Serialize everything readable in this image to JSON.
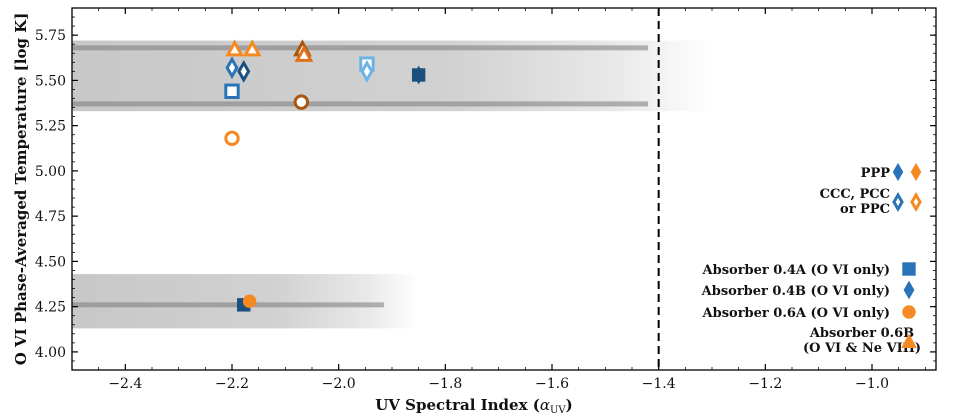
{
  "chart_data": {
    "type": "scatter",
    "xlabel": "UV Spectral Index (",
    "xlabel_symbol": "α",
    "xlabel_sub": "UV",
    "xlabel_close": ")",
    "ylabel": "O VI Phase-Averaged Temperature [log K]",
    "xlim": [
      -2.5,
      -0.88
    ],
    "ylim": [
      3.9,
      5.9
    ],
    "xticks": [
      -2.4,
      -2.2,
      -2.0,
      -1.8,
      -1.6,
      -1.4,
      -1.2,
      -1.0
    ],
    "yticks": [
      4.0,
      4.25,
      4.5,
      4.75,
      5.0,
      5.25,
      5.5,
      5.75
    ],
    "xtick_labels": [
      "−2.4",
      "−2.2",
      "−2.0",
      "−1.8",
      "−1.6",
      "−1.4",
      "−1.2",
      "−1.0"
    ],
    "ytick_labels": [
      "4.00",
      "4.25",
      "4.50",
      "4.75",
      "5.00",
      "5.25",
      "5.50",
      "5.75"
    ],
    "vline_x": -1.4,
    "colors": {
      "blue": "#2a73b6",
      "dark_blue": "#1a4f7f",
      "light_blue": "#6fb3e6",
      "orange": "#f58a23",
      "brown": "#a9560f",
      "dark_orange": "#e0701a"
    },
    "background_bands": [
      {
        "y_low": 5.33,
        "y_high": 5.72,
        "x_low": -2.5,
        "x_high": -1.3,
        "dense_lines": [
          5.37,
          5.68
        ]
      },
      {
        "y_low": 4.13,
        "y_high": 4.43,
        "x_low": -2.5,
        "x_high": -1.85,
        "dense_lines": [
          4.26
        ]
      }
    ],
    "series": [
      {
        "name": "Absorber 0.4A (O VI only)",
        "marker": "square",
        "points": [
          {
            "x": -2.2,
            "y": 5.44,
            "fill": "open",
            "color": "blue"
          },
          {
            "x": -1.947,
            "y": 5.59,
            "fill": "open",
            "color": "light_blue"
          },
          {
            "x": -1.85,
            "y": 5.53,
            "fill": "filled",
            "color": "dark_blue"
          },
          {
            "x": -2.178,
            "y": 4.26,
            "fill": "filled",
            "color": "dark_blue"
          }
        ]
      },
      {
        "name": "Absorber 0.4B (O VI only)",
        "marker": "diamond",
        "points": [
          {
            "x": -2.2,
            "y": 5.57,
            "fill": "open",
            "color": "blue"
          },
          {
            "x": -2.178,
            "y": 5.55,
            "fill": "open",
            "color": "dark_blue"
          },
          {
            "x": -1.947,
            "y": 5.55,
            "fill": "open",
            "color": "light_blue"
          },
          {
            "x": -1.85,
            "y": 5.53,
            "fill": "filled",
            "color": "dark_blue"
          }
        ]
      },
      {
        "name": "Absorber 0.6A (O VI only)",
        "marker": "circle",
        "points": [
          {
            "x": -2.2,
            "y": 5.18,
            "fill": "open",
            "color": "orange"
          },
          {
            "x": -2.07,
            "y": 5.38,
            "fill": "open",
            "color": "brown"
          },
          {
            "x": -2.167,
            "y": 4.28,
            "fill": "filled",
            "color": "orange"
          }
        ]
      },
      {
        "name": "Absorber 0.6B (O VI & Ne VIII)",
        "marker": "triangle",
        "points": [
          {
            "x": -2.195,
            "y": 5.67,
            "fill": "open",
            "color": "orange"
          },
          {
            "x": -2.162,
            "y": 5.67,
            "fill": "open",
            "color": "orange"
          },
          {
            "x": -2.068,
            "y": 5.67,
            "fill": "open",
            "color": "brown"
          },
          {
            "x": -2.065,
            "y": 5.64,
            "fill": "open",
            "color": "dark_orange"
          }
        ]
      }
    ],
    "legend": {
      "placement": "right",
      "style_entries": [
        {
          "label": "PPP",
          "style": "filled"
        },
        {
          "label_lines": [
            "CCC, PCC",
            "or PPC"
          ],
          "style": "open"
        }
      ],
      "marker_entries": [
        {
          "label": "Absorber 0.4A (O VI only)",
          "marker": "square"
        },
        {
          "label": "Absorber 0.4B (O VI only)",
          "marker": "diamond"
        },
        {
          "label": "Absorber 0.6A (O VI only)",
          "marker": "circle"
        },
        {
          "label_lines": [
            "Absorber 0.6B",
            "(O VI & Ne VIII)"
          ],
          "marker": "triangle"
        }
      ]
    }
  }
}
